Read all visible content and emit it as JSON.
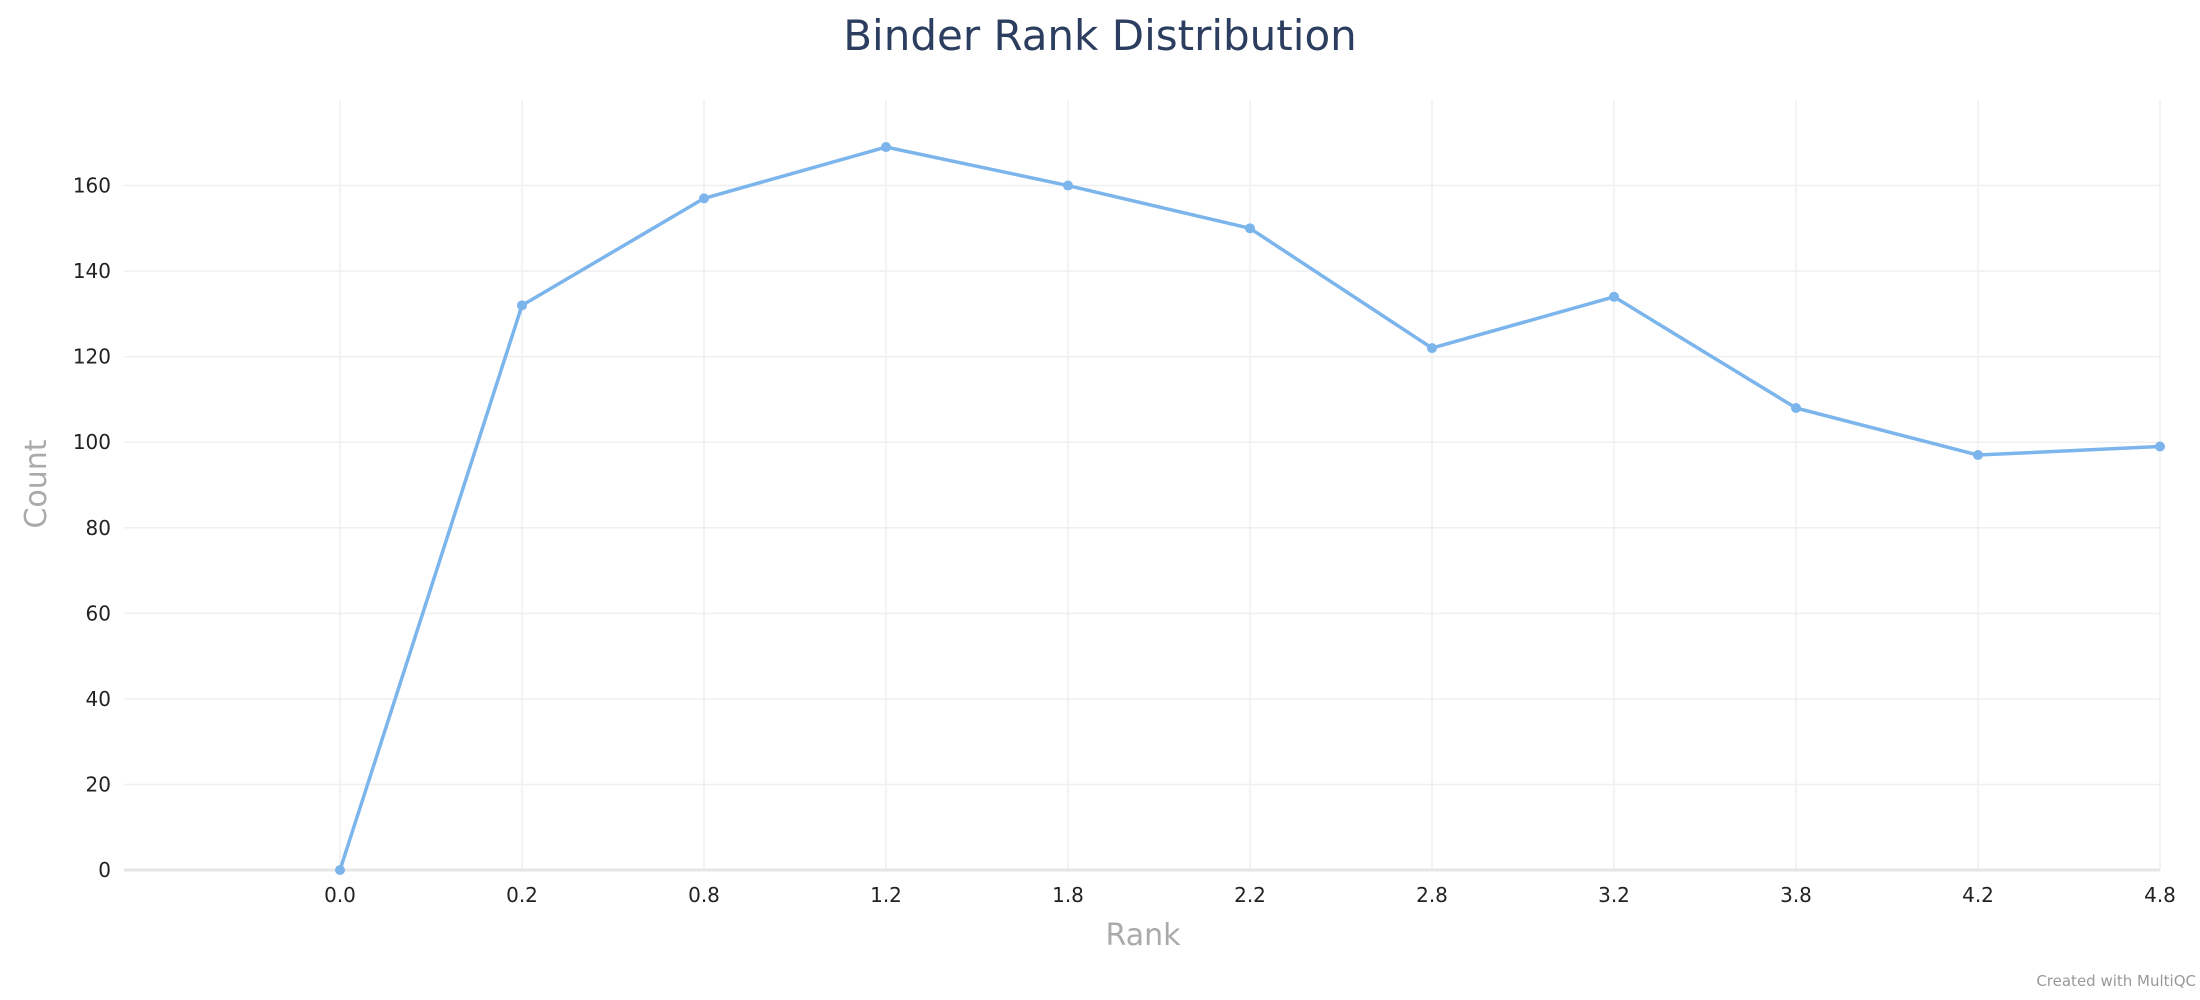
{
  "chart_data": {
    "type": "line",
    "title": "Binder Rank Distribution",
    "xlabel": "Rank",
    "ylabel": "Count",
    "categories": [
      "0.0",
      "0.2",
      "0.8",
      "1.2",
      "1.8",
      "2.2",
      "2.8",
      "3.2",
      "3.8",
      "4.2",
      "4.8"
    ],
    "series": [
      {
        "color": "#7cb5ec",
        "values": [
          0,
          132,
          157,
          169,
          160,
          150,
          122,
          134,
          108,
          97,
          99
        ]
      }
    ],
    "ylim": [
      0,
      180
    ],
    "yticks": [
      0,
      20,
      40,
      60,
      80,
      100,
      120,
      140,
      160
    ],
    "grid": true,
    "legend": "none"
  },
  "credit": "Created with MultiQC"
}
